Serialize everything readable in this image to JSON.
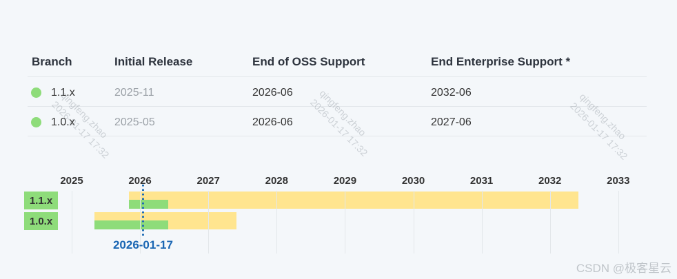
{
  "table": {
    "headers": {
      "branch": "Branch",
      "initial_release": "Initial Release",
      "end_oss": "End of OSS Support",
      "end_enterprise": "End Enterprise Support *"
    },
    "rows": [
      {
        "branch": "1.1.x",
        "initial_release": "2025-11",
        "end_oss": "2026-06",
        "end_enterprise": "2032-06",
        "status_color": "#8edc7a"
      },
      {
        "branch": "1.0.x",
        "initial_release": "2025-05",
        "end_oss": "2026-06",
        "end_enterprise": "2027-06",
        "status_color": "#8edc7a"
      }
    ]
  },
  "chart_data": {
    "type": "bar",
    "subtype": "gantt-timeline",
    "title": "",
    "x_axis": {
      "ticks": [
        2025,
        2026,
        2027,
        2028,
        2029,
        2030,
        2031,
        2032,
        2033
      ],
      "range": [
        2024.35,
        2033.85
      ],
      "grid": true
    },
    "categories": [
      "1.1.x",
      "1.0.x"
    ],
    "series": [
      {
        "name": "1.1.x",
        "bars": [
          {
            "kind": "enterprise-support",
            "start": "2025-11",
            "end": "2032-06",
            "color": "#ffe58f"
          },
          {
            "kind": "oss-support",
            "start": "2025-11",
            "end": "2026-06",
            "color": "#8edc7a"
          }
        ]
      },
      {
        "name": "1.0.x",
        "bars": [
          {
            "kind": "enterprise-support",
            "start": "2025-05",
            "end": "2027-06",
            "color": "#ffe58f"
          },
          {
            "kind": "oss-support",
            "start": "2025-05",
            "end": "2026-06",
            "color": "#8edc7a"
          }
        ]
      }
    ],
    "marker": {
      "date": "2026-01-17",
      "label": "2026-01-17",
      "color": "#1a66b3"
    },
    "row_label_color": "#8edc7a",
    "legend_position": "none"
  },
  "watermarks": {
    "diagonal_line1": "qingfeng.zhao",
    "diagonal_line2": "2026-01-17 17:32",
    "csdn": "CSDN @极客星云"
  },
  "colors": {
    "green": "#8edc7a",
    "yellow": "#ffe58f",
    "blue": "#1a66b3",
    "background": "#f4f7fa",
    "muted_text": "#9ba1a7"
  }
}
